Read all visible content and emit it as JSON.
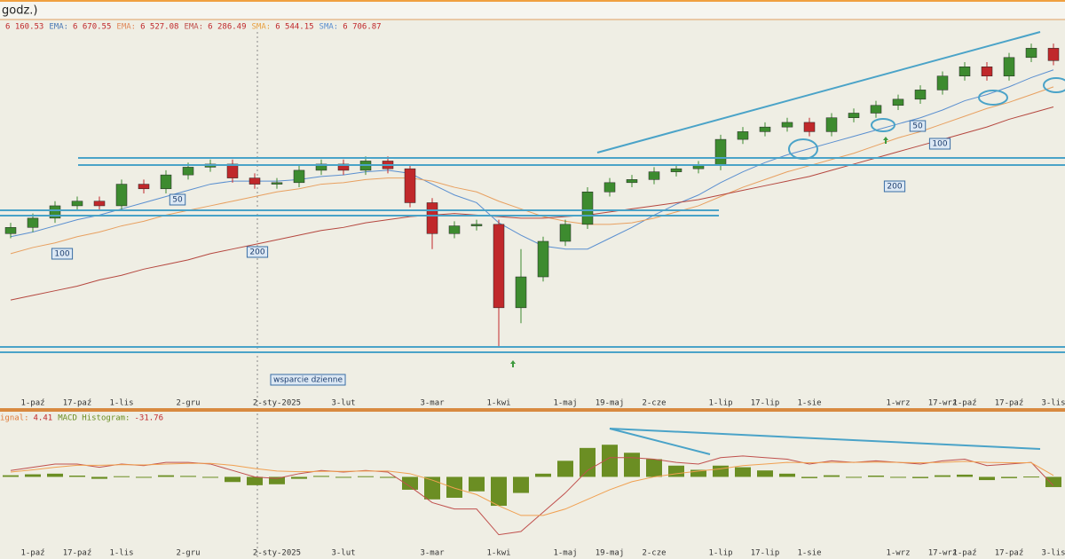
{
  "chart_data": {
    "type": "candlestick",
    "header": "godz.)",
    "legend": [
      {
        "label": "",
        "value": "6 160.53",
        "color": "#555555"
      },
      {
        "label": "EMA:",
        "value": "6 670.55",
        "color": "#4a7ab5"
      },
      {
        "label": "EMA:",
        "value": "6 527.08",
        "color": "#e0895a"
      },
      {
        "label": "EMA:",
        "value": "6 286.49",
        "color": "#c0504d"
      },
      {
        "label": "SMA:",
        "value": "6 544.15",
        "color": "#e8a040"
      },
      {
        "label": "SMA:",
        "value": "6 706.87",
        "color": "#5a8fd0"
      }
    ],
    "categories": [
      null,
      "1-paź",
      null,
      "17-paź",
      null,
      "1-lis",
      null,
      null,
      "2-gru",
      null,
      null,
      null,
      "2-sty-2025",
      null,
      null,
      "3-lut",
      null,
      null,
      null,
      "3-mar",
      null,
      null,
      "1-kwi",
      null,
      null,
      "1-maj",
      null,
      "19-maj",
      null,
      "2-cze",
      null,
      null,
      "1-lip",
      null,
      "17-lip",
      null,
      "1-sie",
      null,
      null,
      null,
      "1-wrz",
      null,
      "17-wrz",
      "1-paź",
      null,
      "17-paź",
      null,
      "3-lis"
    ],
    "open": [
      5580,
      5620,
      5680,
      5760,
      5790,
      5760,
      5900,
      5870,
      5960,
      6010,
      6030,
      5940,
      5900,
      5910,
      5990,
      6030,
      5990,
      6050,
      6000,
      5780,
      5580,
      5630,
      5640,
      5100,
      5300,
      5530,
      5640,
      5850,
      5910,
      5930,
      5980,
      6000,
      6020,
      6190,
      6240,
      6270,
      6300,
      6240,
      6330,
      6360,
      6410,
      6450,
      6510,
      6600,
      6660,
      6600,
      6720,
      6780
    ],
    "high": [
      5650,
      5710,
      5790,
      5820,
      5820,
      5930,
      5930,
      5990,
      6040,
      6060,
      6060,
      5970,
      5940,
      6020,
      6060,
      6060,
      6080,
      6080,
      6030,
      5810,
      5660,
      5670,
      5670,
      5480,
      5560,
      5670,
      5880,
      5940,
      5960,
      6010,
      6030,
      6050,
      6220,
      6270,
      6300,
      6330,
      6330,
      6360,
      6390,
      6440,
      6480,
      6540,
      6630,
      6690,
      6690,
      6750,
      6810,
      6810
    ],
    "low": [
      5550,
      5590,
      5650,
      5730,
      5730,
      5730,
      5840,
      5840,
      5930,
      5980,
      5910,
      5870,
      5870,
      5880,
      5960,
      5960,
      5960,
      5970,
      5750,
      5480,
      5550,
      5600,
      4850,
      5000,
      5270,
      5500,
      5610,
      5820,
      5880,
      5900,
      5950,
      5970,
      5990,
      6160,
      6210,
      6240,
      6210,
      6210,
      6300,
      6330,
      6380,
      6420,
      6480,
      6570,
      6570,
      6570,
      6690,
      6670
    ],
    "close": [
      5620,
      5680,
      5760,
      5790,
      5760,
      5900,
      5870,
      5960,
      6010,
      6030,
      5940,
      5900,
      5910,
      5990,
      6030,
      5990,
      6050,
      6000,
      5780,
      5580,
      5630,
      5640,
      5100,
      5300,
      5530,
      5640,
      5850,
      5910,
      5930,
      5980,
      6000,
      6020,
      6190,
      6240,
      6270,
      6300,
      6240,
      6330,
      6360,
      6410,
      6450,
      6510,
      6600,
      6660,
      6600,
      6720,
      6780,
      6700
    ],
    "up_color": "#3d8b2f",
    "down_color": "#c0282b",
    "ylim": [
      4450,
      6920
    ],
    "overlays": [
      {
        "color": "#5a8fd0",
        "values": [
          5560,
          5590,
          5630,
          5670,
          5700,
          5740,
          5780,
          5820,
          5860,
          5900,
          5920,
          5920,
          5920,
          5930,
          5950,
          5960,
          5980,
          5990,
          5970,
          5900,
          5830,
          5780,
          5650,
          5570,
          5500,
          5480,
          5480,
          5550,
          5620,
          5700,
          5770,
          5830,
          5910,
          5980,
          6040,
          6090,
          6130,
          6170,
          6210,
          6250,
          6290,
          6330,
          6380,
          6440,
          6480,
          6530,
          6590,
          6640
        ]
      },
      {
        "color": "#e8a060",
        "values": [
          5450,
          5490,
          5520,
          5560,
          5590,
          5630,
          5660,
          5700,
          5730,
          5760,
          5790,
          5820,
          5850,
          5870,
          5900,
          5910,
          5930,
          5940,
          5940,
          5920,
          5880,
          5850,
          5790,
          5740,
          5690,
          5660,
          5640,
          5640,
          5650,
          5680,
          5720,
          5760,
          5820,
          5880,
          5930,
          5980,
          6020,
          6060,
          6100,
          6150,
          6200,
          6240,
          6290,
          6340,
          6390,
          6430,
          6480,
          6530
        ]
      },
      {
        "color": "#b5473f",
        "values": [
          5150,
          5180,
          5210,
          5240,
          5280,
          5310,
          5350,
          5380,
          5410,
          5450,
          5480,
          5510,
          5540,
          5570,
          5600,
          5620,
          5650,
          5670,
          5690,
          5700,
          5710,
          5700,
          5690,
          5680,
          5680,
          5690,
          5700,
          5720,
          5740,
          5760,
          5780,
          5800,
          5830,
          5860,
          5890,
          5920,
          5950,
          5990,
          6030,
          6070,
          6110,
          6150,
          6190,
          6230,
          6270,
          6320,
          6360,
          6400
        ]
      }
    ],
    "annotations": [
      "50",
      "100",
      "200",
      "wsparcie dzienne",
      "50",
      "100",
      "200"
    ],
    "macd": {
      "legend": [
        {
          "label": "ignal:",
          "value": "4.41",
          "color": "#e07b39"
        },
        {
          "label": "MACD Histogram:",
          "value": "-31.76",
          "color": "#6b8e23"
        }
      ],
      "ylim": [
        -250,
        200
      ],
      "macd_color": "#c0504d",
      "signal_color": "#f0a050",
      "hist_color": "#6b8e23",
      "macd": [
        20,
        30,
        40,
        40,
        30,
        40,
        35,
        45,
        45,
        40,
        20,
        0,
        -5,
        10,
        20,
        15,
        20,
        15,
        -30,
        -80,
        -100,
        -100,
        -180,
        -170,
        -110,
        -50,
        20,
        60,
        60,
        55,
        45,
        40,
        60,
        65,
        60,
        55,
        40,
        50,
        45,
        50,
        45,
        40,
        50,
        55,
        35,
        40,
        45,
        -27.35
      ],
      "signal": [
        15,
        22,
        30,
        36,
        36,
        38,
        37,
        40,
        42,
        42,
        36,
        26,
        18,
        16,
        17,
        17,
        18,
        18,
        10,
        -10,
        -35,
        -55,
        -90,
        -120,
        -120,
        -100,
        -70,
        -40,
        -15,
        0,
        10,
        18,
        25,
        35,
        40,
        45,
        44,
        45,
        45,
        46,
        45,
        44,
        45,
        48,
        45,
        44,
        44,
        4.41
      ],
      "histogram": [
        5,
        8,
        10,
        4,
        -6,
        2,
        -2,
        5,
        3,
        -2,
        -16,
        -26,
        -23,
        -6,
        3,
        -2,
        2,
        -3,
        -40,
        -70,
        -65,
        -45,
        -90,
        -50,
        10,
        50,
        90,
        100,
        75,
        55,
        35,
        22,
        35,
        30,
        20,
        10,
        -4,
        5,
        0,
        4,
        0,
        -4,
        5,
        7,
        -10,
        -4,
        1,
        -31.76
      ]
    }
  }
}
